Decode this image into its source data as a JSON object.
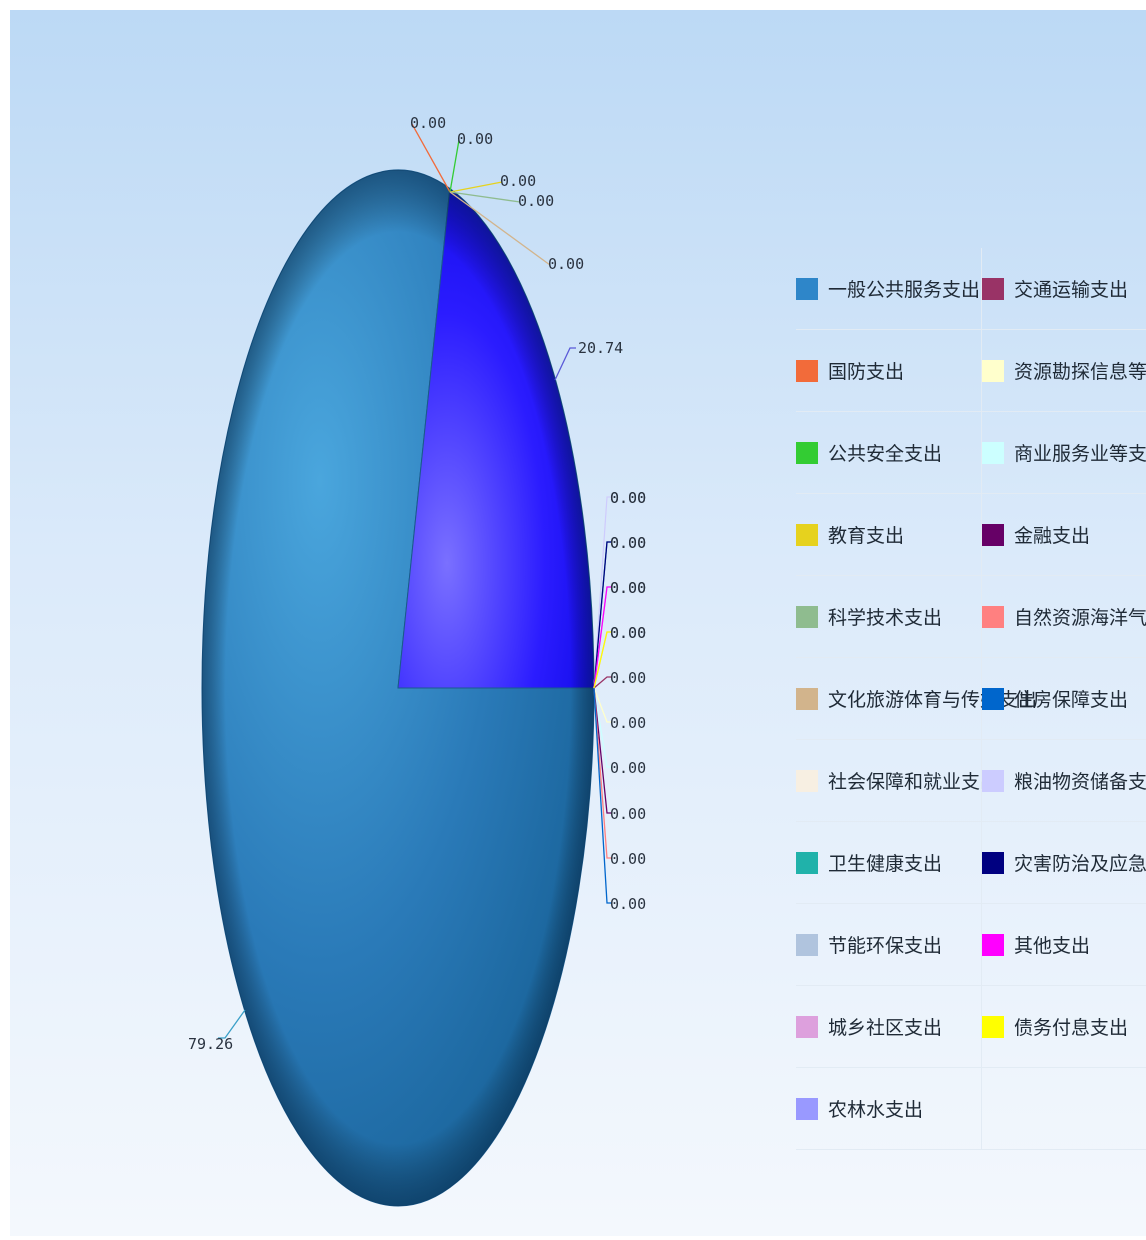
{
  "chart_data": {
    "type": "pie",
    "title": "",
    "categories": [
      "一般公共服务支出",
      "国防支出",
      "公共安全支出",
      "教育支出",
      "科学技术支出",
      "文化旅游体育与传媒支出",
      "社会保障和就业支出",
      "卫生健康支出",
      "节能环保支出",
      "城乡社区支出",
      "农林水支出",
      "交通运输支出",
      "资源勘探信息等支出",
      "商业服务业等支出",
      "金融支出",
      "自然资源海洋气象等支出",
      "住房保障支出",
      "粮油物资储备支出",
      "灾害防治及应急管理支出",
      "其他支出",
      "债务付息支出"
    ],
    "values": [
      79.26,
      0.0,
      0.0,
      0.0,
      0.0,
      0.0,
      0.0,
      0.0,
      0.0,
      0.0,
      20.74,
      0.0,
      0.0,
      0.0,
      0.0,
      0.0,
      0.0,
      0.0,
      0.0,
      0.0,
      0.0
    ],
    "value_labels": [
      "79.26",
      "0.00",
      "0.00",
      "0.00",
      "0.00",
      "0.00",
      "0.00",
      "0.00",
      "0.00",
      "0.00",
      "20.74",
      "0.00",
      "0.00",
      "0.00",
      "0.00",
      "0.00",
      "0.00",
      "0.00",
      "0.00",
      "0.00",
      "0.00"
    ],
    "colors": [
      "#2e86c9",
      "#f26b3a",
      "#33cc33",
      "#e6d21e",
      "#8fbc8f",
      "#d2b48c",
      "#f7efe2",
      "#20b2aa",
      "#b0c4de",
      "#dda0dd",
      "#9999ff",
      "#993366",
      "#ffffcc",
      "#ccffff",
      "#660066",
      "#ff8080",
      "#0066cc",
      "#ccccff",
      "#000080",
      "#ff00ff",
      "#ffff00"
    ],
    "legend_position": "right"
  }
}
